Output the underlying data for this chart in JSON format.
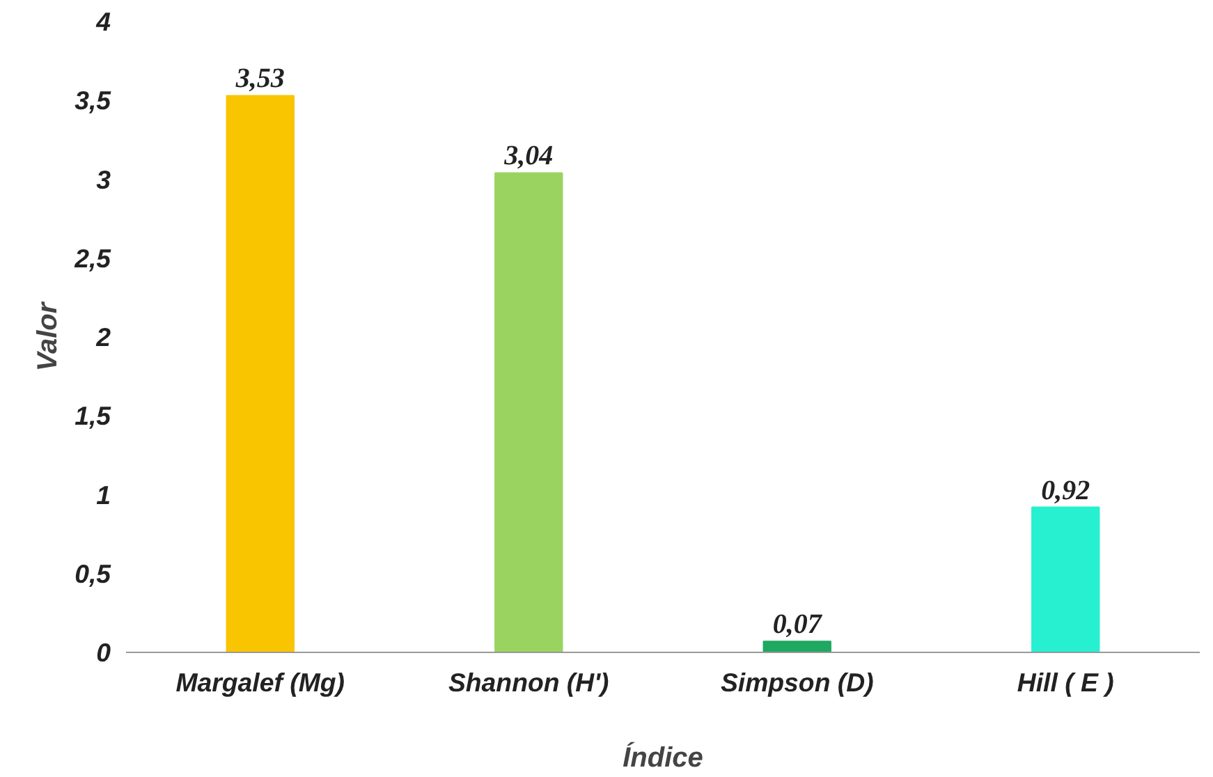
{
  "chart_data": {
    "type": "bar",
    "xlabel": "Índice",
    "ylabel": "Valor",
    "categories": [
      "Margalef (Mg)",
      "Shannon (H')",
      "Simpson (D)",
      "Hill ( E )"
    ],
    "values": [
      3.53,
      3.04,
      0.07,
      0.92
    ],
    "colors": [
      "#f9c400",
      "#9ad360",
      "#1ea860",
      "#26f0d0"
    ],
    "value_labels": [
      "3,53",
      "3,04",
      "0,07",
      "0,92"
    ],
    "ylim": [
      0,
      4
    ],
    "yticks": [
      0,
      {
        "value": 0.5,
        "label": "0,5"
      },
      1,
      {
        "value": 1.5,
        "label": "1,5"
      },
      2,
      {
        "value": 2.5,
        "label": "2,5"
      },
      3,
      {
        "value": 3.5,
        "label": "3,5"
      },
      4
    ],
    "grid": false
  }
}
